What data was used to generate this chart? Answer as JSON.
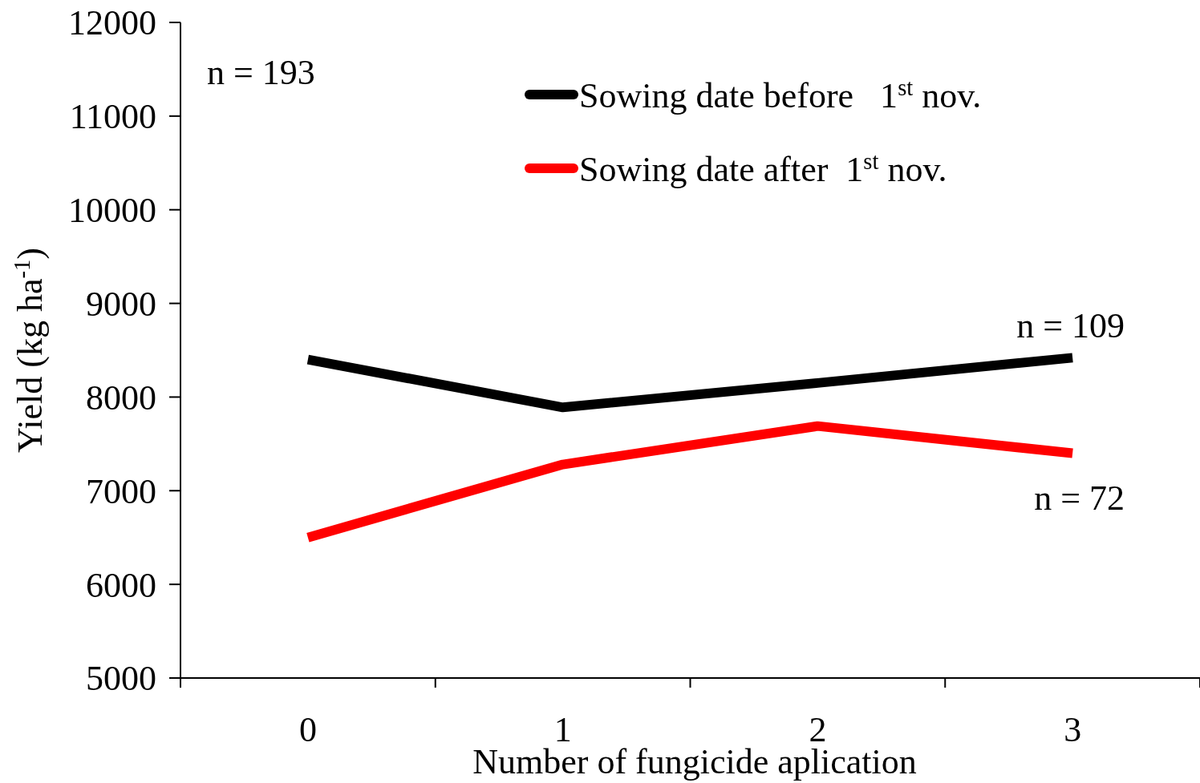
{
  "chart_data": {
    "type": "line",
    "xlabel": "Number of fungicide aplication",
    "ylabel": "Yield (kg ha$^{-1}$)",
    "categories": [
      "0",
      "1",
      "2",
      "3"
    ],
    "series": [
      {
        "name": "Sowing date before   1$^{st}$ nov.",
        "color": "#000000",
        "values": [
          8400,
          7890,
          8150,
          8420
        ]
      },
      {
        "name": "Sowing date after  1$^{st}$ nov.",
        "color": "#ff0000",
        "values": [
          6500,
          7280,
          7690,
          7400
        ]
      }
    ],
    "ylim": [
      5000,
      12000
    ],
    "yticks": [
      5000,
      6000,
      7000,
      8000,
      9000,
      10000,
      11000,
      12000
    ],
    "grid": false,
    "legend": "top right",
    "marker": "none",
    "line_style": "solid",
    "annotations": [
      "n = 193",
      {
        "text": "n = 109",
        "x": "3",
        "y": 8420
      },
      {
        "text": "n = 72",
        "x": "3",
        "y": 7400
      }
    ]
  }
}
